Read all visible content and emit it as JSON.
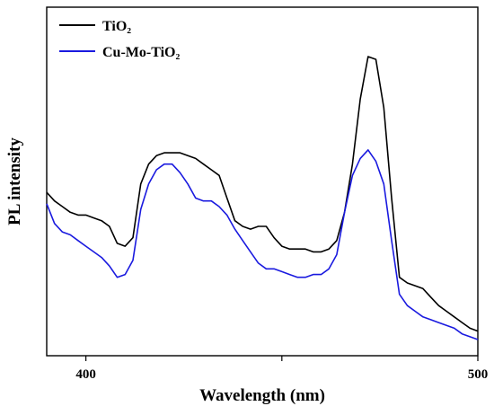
{
  "chart_data": {
    "type": "line",
    "title": "",
    "xlabel": "Wavelength (nm)",
    "ylabel": "PL intensity",
    "xlim": [
      390,
      500
    ],
    "ylim": [
      0,
      1
    ],
    "x_ticks": [
      400,
      450,
      500
    ],
    "x_tick_labels": [
      "400",
      "",
      "500"
    ],
    "y_ticks_shown": false,
    "grid": false,
    "legend_position": "top-left",
    "series": [
      {
        "name": "TiO₂",
        "color": "#000000",
        "x": [
          390,
          392,
          394,
          396,
          398,
          400,
          402,
          404,
          406,
          408,
          410,
          412,
          414,
          416,
          418,
          420,
          422,
          424,
          426,
          428,
          430,
          432,
          434,
          436,
          438,
          440,
          442,
          444,
          446,
          448,
          450,
          452,
          454,
          456,
          458,
          460,
          462,
          464,
          466,
          468,
          470,
          472,
          474,
          476,
          478,
          480,
          482,
          484,
          486,
          488,
          490,
          492,
          494,
          496,
          498,
          500
        ],
        "values": [
          0.52,
          0.49,
          0.47,
          0.45,
          0.44,
          0.44,
          0.43,
          0.42,
          0.4,
          0.34,
          0.33,
          0.36,
          0.55,
          0.62,
          0.65,
          0.66,
          0.66,
          0.66,
          0.65,
          0.64,
          0.62,
          0.6,
          0.58,
          0.5,
          0.42,
          0.4,
          0.39,
          0.4,
          0.4,
          0.36,
          0.33,
          0.32,
          0.32,
          0.32,
          0.31,
          0.31,
          0.32,
          0.35,
          0.45,
          0.62,
          0.85,
          1.0,
          0.99,
          0.82,
          0.5,
          0.22,
          0.2,
          0.19,
          0.18,
          0.15,
          0.12,
          0.1,
          0.08,
          0.06,
          0.04,
          0.03
        ]
      },
      {
        "name": "Cu-Mo-TiO₂",
        "color": "#1a1adf",
        "x": [
          390,
          392,
          394,
          396,
          398,
          400,
          402,
          404,
          406,
          408,
          410,
          412,
          414,
          416,
          418,
          420,
          422,
          424,
          426,
          428,
          430,
          432,
          434,
          436,
          438,
          440,
          442,
          444,
          446,
          448,
          450,
          452,
          454,
          456,
          458,
          460,
          462,
          464,
          466,
          468,
          470,
          472,
          474,
          476,
          478,
          480,
          482,
          484,
          486,
          488,
          490,
          492,
          494,
          496,
          498,
          500
        ],
        "values": [
          0.48,
          0.41,
          0.38,
          0.37,
          0.35,
          0.33,
          0.31,
          0.29,
          0.26,
          0.22,
          0.23,
          0.28,
          0.46,
          0.55,
          0.6,
          0.62,
          0.62,
          0.59,
          0.55,
          0.5,
          0.49,
          0.49,
          0.47,
          0.44,
          0.39,
          0.35,
          0.31,
          0.27,
          0.25,
          0.25,
          0.24,
          0.23,
          0.22,
          0.22,
          0.23,
          0.23,
          0.25,
          0.3,
          0.45,
          0.58,
          0.64,
          0.67,
          0.63,
          0.55,
          0.35,
          0.16,
          0.12,
          0.1,
          0.08,
          0.07,
          0.06,
          0.05,
          0.04,
          0.02,
          0.01,
          0.0
        ]
      }
    ]
  }
}
